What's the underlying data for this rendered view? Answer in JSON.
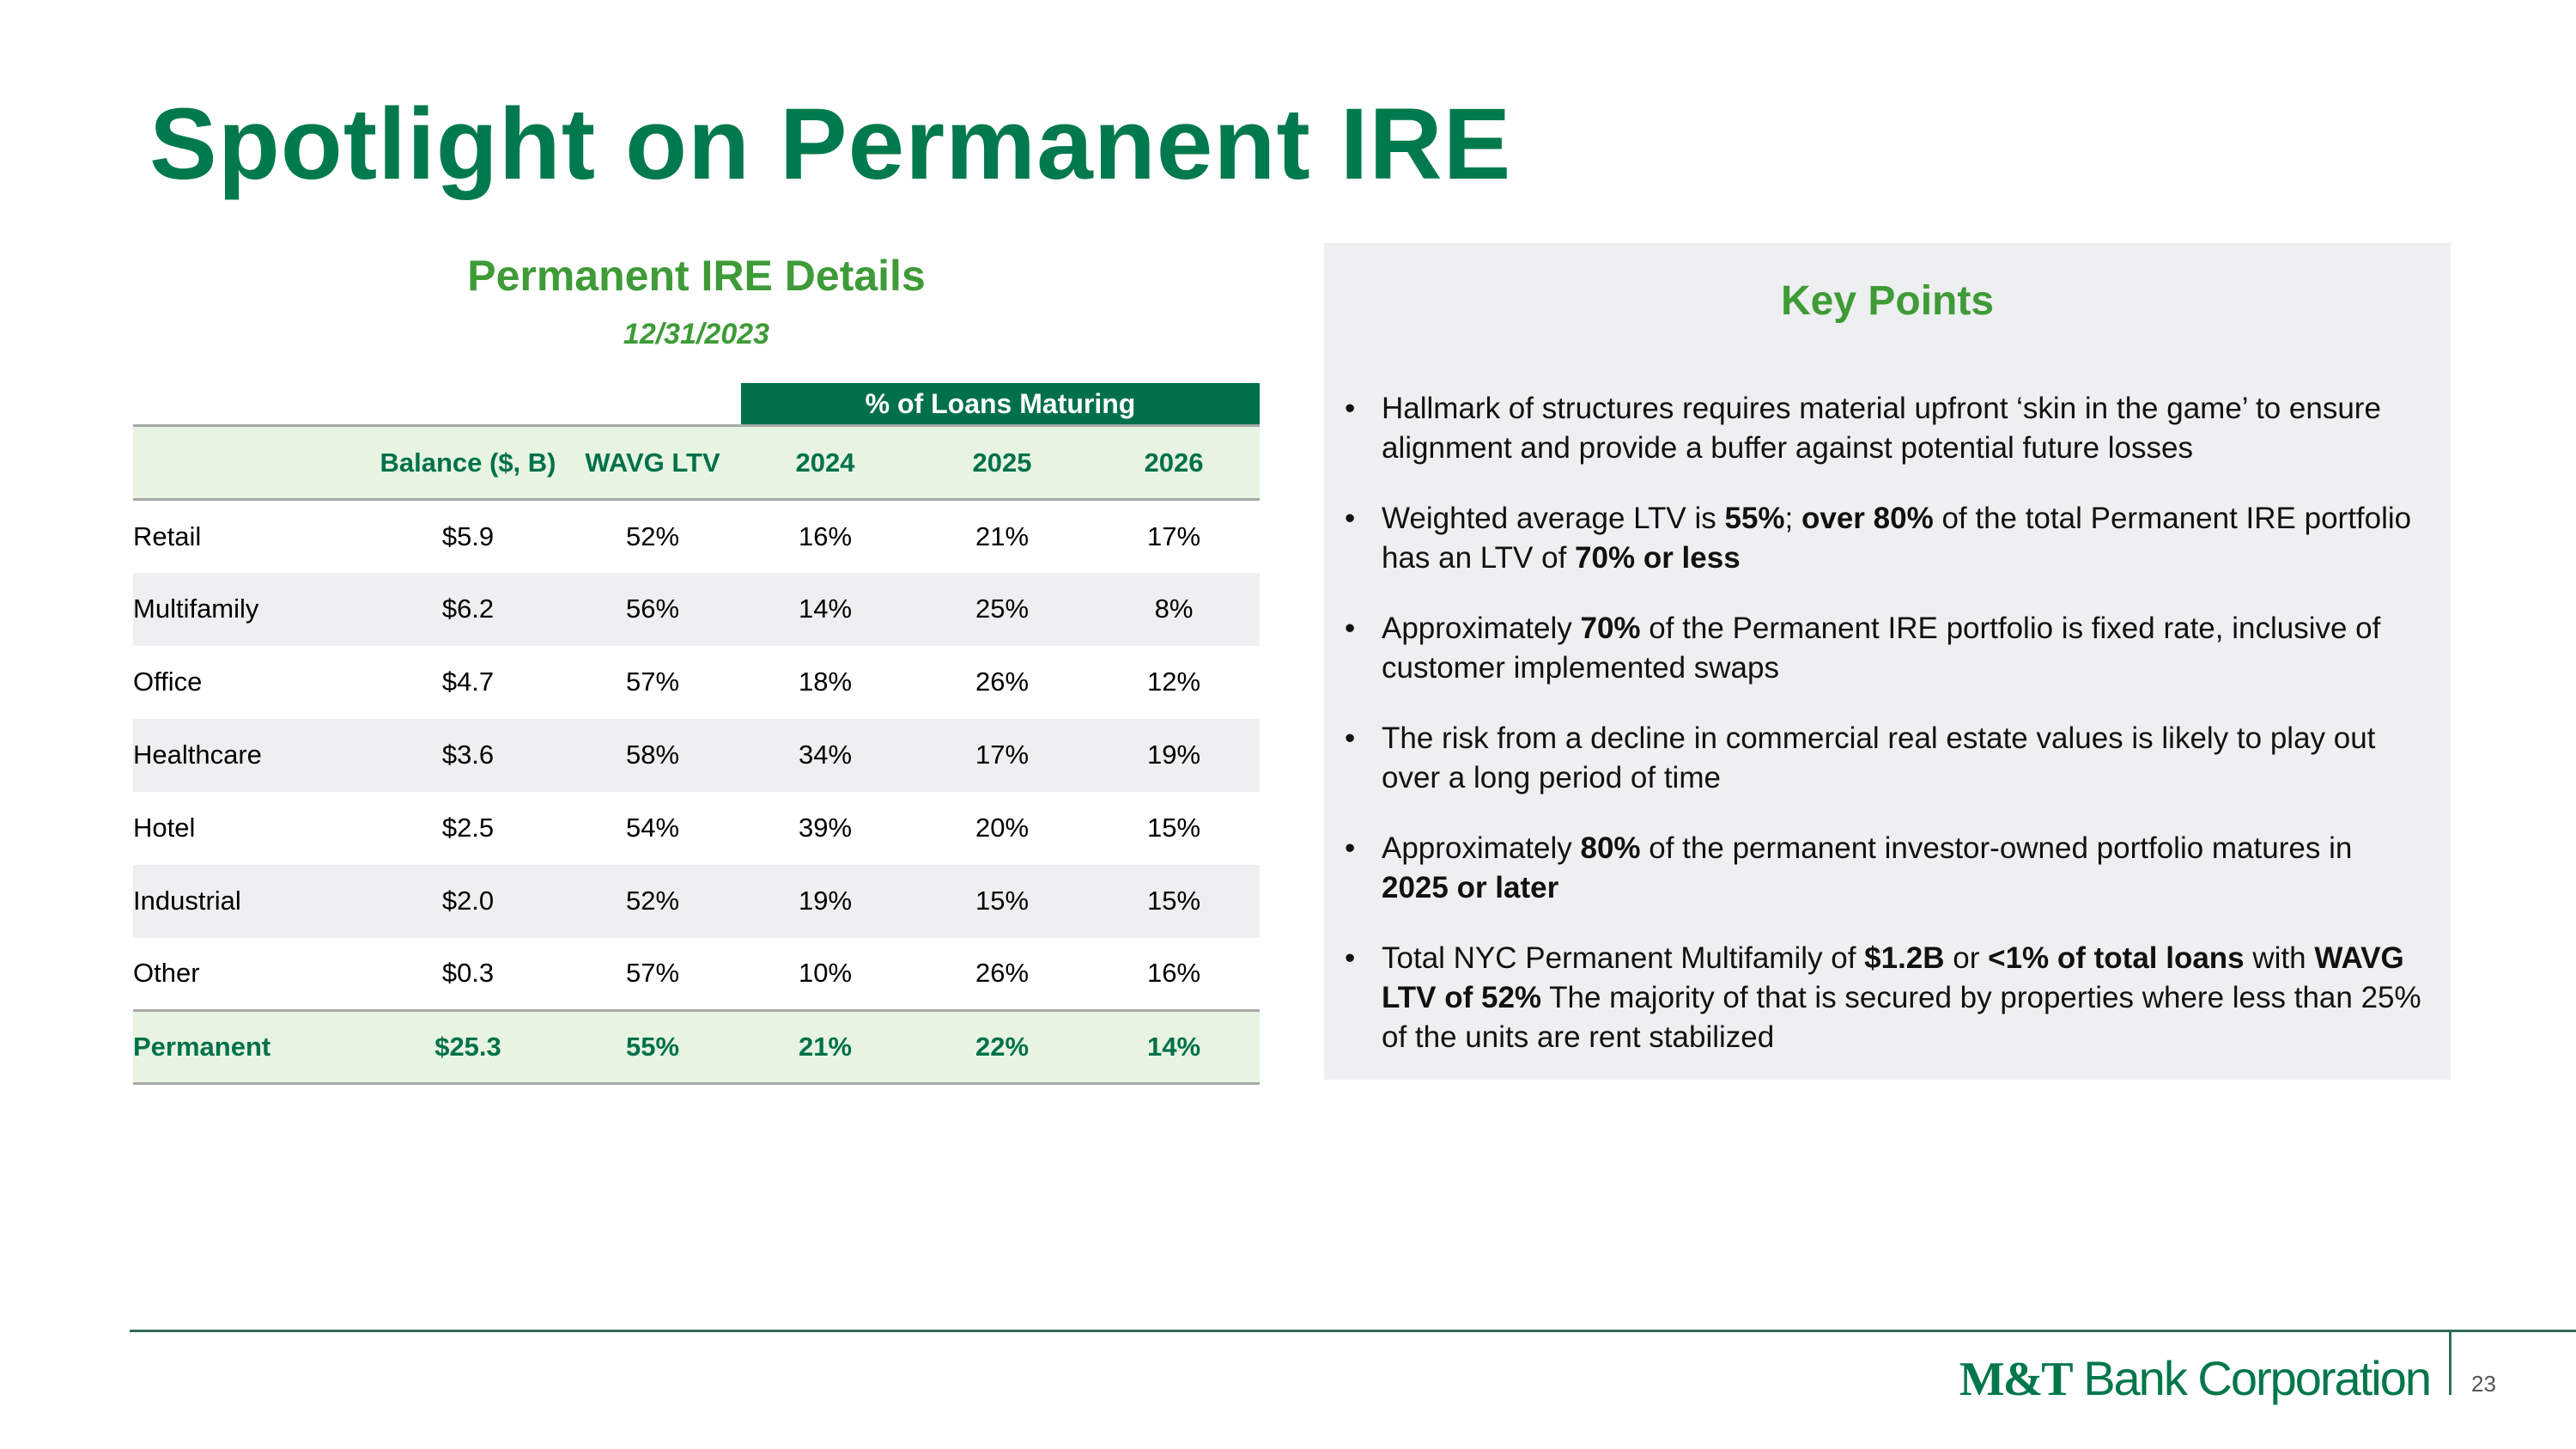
{
  "title": "Spotlight on Permanent IRE",
  "table": {
    "title": "Permanent IRE Details",
    "date": "12/31/2023",
    "group_header": "% of Loans Maturing",
    "headers": [
      "",
      "Balance ($, B)",
      "WAVG LTV",
      "2024",
      "2025",
      "2026"
    ],
    "rows": [
      [
        "Retail",
        "$5.9",
        "52%",
        "16%",
        "21%",
        "17%"
      ],
      [
        "Multifamily",
        "$6.2",
        "56%",
        "14%",
        "25%",
        "8%"
      ],
      [
        "Office",
        "$4.7",
        "57%",
        "18%",
        "26%",
        "12%"
      ],
      [
        "Healthcare",
        "$3.6",
        "58%",
        "34%",
        "17%",
        "19%"
      ],
      [
        "Hotel",
        "$2.5",
        "54%",
        "39%",
        "20%",
        "15%"
      ],
      [
        "Industrial",
        "$2.0",
        "52%",
        "19%",
        "15%",
        "15%"
      ],
      [
        "Other",
        "$0.3",
        "57%",
        "10%",
        "26%",
        "16%"
      ]
    ],
    "total": [
      "Permanent",
      "$25.3",
      "55%",
      "21%",
      "22%",
      "14%"
    ]
  },
  "key_points": {
    "title": "Key Points",
    "bullets": [
      [
        {
          "t": "Hallmark of structures requires material upfront ‘skin in the game’ to ensure alignment and provide a buffer against potential future losses"
        }
      ],
      [
        {
          "t": "Weighted average LTV is "
        },
        {
          "t": "55%",
          "b": true
        },
        {
          "t": "; "
        },
        {
          "t": "over 80%",
          "b": true
        },
        {
          "t": " of the total Permanent IRE portfolio has an LTV of "
        },
        {
          "t": "70% or less",
          "b": true
        }
      ],
      [
        {
          "t": "Approximately "
        },
        {
          "t": "70%",
          "b": true
        },
        {
          "t": " of the Permanent IRE portfolio is fixed rate, inclusive of customer implemented swaps"
        }
      ],
      [
        {
          "t": "The risk from a decline in commercial real estate values is likely to play out over a long period of time"
        }
      ],
      [
        {
          "t": "Approximately "
        },
        {
          "t": "80%",
          "b": true
        },
        {
          "t": " of the permanent investor-owned portfolio matures in "
        },
        {
          "t": "2025 or later",
          "b": true
        }
      ],
      [
        {
          "t": "Total NYC Permanent Multifamily of "
        },
        {
          "t": "$1.2B",
          "b": true
        },
        {
          "t": " or "
        },
        {
          "t": "<1% of total loans",
          "b": true
        },
        {
          "t": " with "
        },
        {
          "t": "WAVG LTV of 52%",
          "b": true
        },
        {
          "t": " The majority of that is secured by properties where less than 25% of the units are rent stabilized"
        }
      ]
    ]
  },
  "footer": {
    "logo_mark": "M&T",
    "logo_text": "Bank Corporation",
    "page_number": "23"
  },
  "colors": {
    "brand_green": "#007a4d",
    "header_green": "#00704a",
    "accent_green": "#3e9b37",
    "light_green": "#e6f4e1",
    "panel_gray": "#eeeff0"
  }
}
